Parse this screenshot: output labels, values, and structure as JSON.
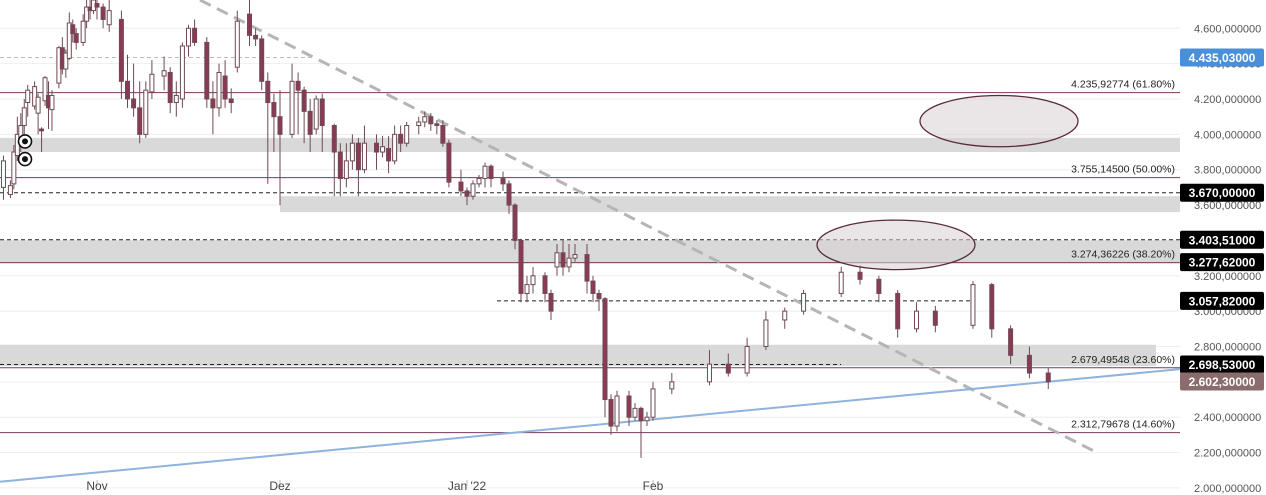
{
  "chart_data": {
    "type": "candlestick",
    "y_axis": {
      "range": [
        1960,
        4760
      ],
      "tick_values": [
        2000,
        2200,
        2400,
        2600,
        2800,
        3000,
        3200,
        3400,
        3600,
        3800,
        4000,
        4200,
        4400,
        4600
      ],
      "tick_labels": [
        "2.000,000000",
        "2.200,000000",
        "2.400,000000",
        "2.600,000000",
        "2.800,000000",
        "3.000,000000",
        "3.200,000000",
        "3.400,000000",
        "3.600,000000",
        "3.800,000000",
        "4.000,000000",
        "4.200,000000",
        "4.400,000000",
        "4.600,000000"
      ]
    },
    "x_axis": {
      "labels": [
        {
          "text": "Nov",
          "date": "2021-11-01"
        },
        {
          "text": "Dez",
          "date": "2021-12-01"
        },
        {
          "text": "Jan '22",
          "date": "2022-01-01"
        },
        {
          "text": "Feb",
          "date": "2022-02-01"
        }
      ]
    },
    "price_labels": [
      {
        "text": "4.435,03000",
        "value": 4435.03,
        "color": "#4a90d9"
      },
      {
        "text": "3.670,00000",
        "value": 3670,
        "color": "#000000"
      },
      {
        "text": "3.403,51000",
        "value": 3403.51,
        "color": "#000000"
      },
      {
        "text": "3.277,62000",
        "value": 3277.62,
        "color": "#000000"
      },
      {
        "text": "3.057,82000",
        "value": 3057.82,
        "color": "#000000"
      },
      {
        "text": "2.698,53000",
        "value": 2698.53,
        "color": "#000000"
      },
      {
        "text": "2.602,30000",
        "value": 2602.3,
        "color": "#8a6c6c"
      }
    ],
    "fib_levels": [
      {
        "text": "4.235,92774 (61.80%)",
        "value": 4235.92774
      },
      {
        "text": "3.755,14500 (50.00%)",
        "value": 3755.145
      },
      {
        "text": "3.274,36226 (38.20%)",
        "value": 3274.36226
      },
      {
        "text": "2.679,49548 (23.60%)",
        "value": 2679.49548
      },
      {
        "text": "2.312,79678 (14.60%)",
        "value": 2312.79678
      }
    ],
    "zones": [
      {
        "from": 3900,
        "to": 3980,
        "start": "2021-10-05",
        "end": "2022-03-01"
      },
      {
        "from": 3560,
        "to": 3650,
        "start": "2021-12-01",
        "end": "2022-03-01"
      },
      {
        "from": 3270,
        "to": 3400,
        "start": "2021-10-05",
        "end": "2022-03-01"
      },
      {
        "from": 2690,
        "to": 2810,
        "start": "2021-10-05",
        "end": "2022-02-27"
      }
    ],
    "dashed_levels": [
      {
        "value": 4435.03,
        "start": "2021-10-05",
        "end": "2021-12-06"
      },
      {
        "value": 3670,
        "start": "2021-10-05",
        "end": "2022-03-01"
      },
      {
        "value": 3403.51,
        "start": "2021-10-05",
        "end": "2022-03-01"
      },
      {
        "value": 3057.82,
        "start": "2022-01-06",
        "end": "2022-02-22"
      },
      {
        "value": 2698.53,
        "start": "2021-10-05",
        "end": "2022-02-11"
      }
    ],
    "trendlines": [
      {
        "style": "dashed-gray",
        "points": [
          [
            "2021-11-06",
            4800
          ],
          [
            "2022-02-28",
            2200
          ]
        ]
      },
      {
        "style": "solid-blue",
        "points": [
          [
            "2021-10-05",
            2030
          ],
          [
            "2022-03-01",
            2670
          ]
        ]
      }
    ],
    "ellipses": [
      {
        "center_date": "2022-02-24",
        "center_value": 4075,
        "date_radius": 5,
        "value_radius": 145
      },
      {
        "center_date": "2022-02-22",
        "center_value": 3375,
        "date_radius": 5,
        "value_radius": 140
      }
    ],
    "markers": [
      {
        "icon": "eye-marker-icon",
        "date": "2021-10-06",
        "value": 3960
      },
      {
        "icon": "eye-marker-icon",
        "date": "2021-10-06",
        "value": 3860
      }
    ],
    "candles": [
      [
        "2021-10-05",
        3700,
        3850,
        3630,
        3880
      ],
      [
        "2021-10-07",
        3660,
        3710,
        3640,
        3740
      ],
      [
        "2021-10-08",
        3720,
        3900,
        3690,
        3940
      ],
      [
        "2021-10-09",
        3880,
        4000,
        3850,
        4100
      ],
      [
        "2021-10-10",
        3950,
        4050,
        3900,
        4120
      ],
      [
        "2021-10-11",
        4050,
        4150,
        4000,
        4200
      ],
      [
        "2021-10-12",
        4180,
        4250,
        4100,
        4280
      ],
      [
        "2021-10-14",
        4160,
        4270,
        4140,
        4300
      ],
      [
        "2021-10-15",
        4120,
        4210,
        4000,
        4230
      ],
      [
        "2021-10-16",
        4030,
        4020,
        3900,
        4040
      ],
      [
        "2021-10-17",
        4190,
        4320,
        4160,
        4330
      ],
      [
        "2021-10-18",
        4220,
        4150,
        4030,
        4300
      ],
      [
        "2021-10-19",
        4140,
        4220,
        4020,
        4250
      ],
      [
        "2021-10-21",
        4290,
        4490,
        4260,
        4500
      ],
      [
        "2021-10-22",
        4490,
        4370,
        4340,
        4550
      ],
      [
        "2021-10-23",
        4370,
        4460,
        4320,
        4480
      ],
      [
        "2021-10-24",
        4430,
        4630,
        4420,
        4690
      ],
      [
        "2021-10-25",
        4620,
        4570,
        4520,
        4650
      ],
      [
        "2021-10-26",
        4570,
        4520,
        4480,
        4600
      ],
      [
        "2021-10-28",
        4520,
        4640,
        4500,
        4680
      ],
      [
        "2021-10-29",
        4640,
        4720,
        4600,
        4760
      ],
      [
        "2021-10-30",
        4720,
        4700,
        4650,
        4760
      ],
      [
        "2021-10-31",
        4700,
        4760,
        4680,
        4760
      ],
      [
        "2021-11-01",
        4740,
        4720,
        4650,
        4760
      ],
      [
        "2021-11-02",
        4720,
        4650,
        4600,
        4740
      ],
      [
        "2021-11-03",
        4620,
        4700,
        4580,
        4760
      ],
      [
        "2021-11-05",
        4650,
        4300,
        4200,
        4700
      ],
      [
        "2021-11-06",
        4300,
        4200,
        4150,
        4450
      ],
      [
        "2021-11-07",
        4200,
        4150,
        4100,
        4400
      ],
      [
        "2021-11-08",
        4150,
        4000,
        3950,
        4300
      ],
      [
        "2021-11-09",
        4000,
        4250,
        3980,
        4300
      ],
      [
        "2021-11-10",
        4240,
        4340,
        4200,
        4420
      ],
      [
        "2021-11-12",
        4330,
        4360,
        4250,
        4440
      ],
      [
        "2021-11-13",
        4350,
        4180,
        4120,
        4380
      ],
      [
        "2021-11-14",
        4180,
        4220,
        4100,
        4300
      ],
      [
        "2021-11-15",
        4200,
        4500,
        4150,
        4520
      ],
      [
        "2021-11-16",
        4500,
        4600,
        4440,
        4620
      ],
      [
        "2021-11-17",
        4600,
        4520,
        4500,
        4650
      ],
      [
        "2021-11-19",
        4520,
        4200,
        4150,
        4550
      ],
      [
        "2021-11-20",
        4200,
        4150,
        4000,
        4300
      ],
      [
        "2021-11-21",
        4150,
        4350,
        4100,
        4400
      ],
      [
        "2021-11-22",
        4330,
        4200,
        4150,
        4420
      ],
      [
        "2021-11-23",
        4200,
        4180,
        4120,
        4260
      ],
      [
        "2021-11-24",
        4380,
        4640,
        4350,
        4700
      ],
      [
        "2021-11-26",
        4680,
        4560,
        4500,
        4760
      ],
      [
        "2021-11-27",
        4560,
        4540,
        4500,
        4600
      ],
      [
        "2021-11-28",
        4540,
        4300,
        4250,
        4560
      ],
      [
        "2021-11-29",
        4300,
        4180,
        3720,
        4350
      ],
      [
        "2021-11-30",
        4180,
        4100,
        3900,
        4230
      ],
      [
        "2021-12-01",
        4100,
        4000,
        3600,
        4250
      ],
      [
        "2021-12-03",
        4000,
        4300,
        3980,
        4400
      ],
      [
        "2021-12-04",
        4300,
        4250,
        4000,
        4350
      ],
      [
        "2021-12-05",
        4250,
        4130,
        3950,
        4270
      ],
      [
        "2021-12-06",
        4130,
        4000,
        3900,
        4200
      ],
      [
        "2021-12-07",
        4030,
        4200,
        4000,
        4220
      ],
      [
        "2021-12-08",
        4200,
        4050,
        3900,
        4230
      ],
      [
        "2021-12-10",
        4050,
        3900,
        3650,
        4060
      ],
      [
        "2021-12-11",
        3900,
        3750,
        3650,
        3950
      ],
      [
        "2021-12-12",
        3750,
        3850,
        3700,
        3950
      ],
      [
        "2021-12-13",
        3850,
        3950,
        3800,
        4000
      ],
      [
        "2021-12-14",
        3950,
        3800,
        3650,
        3980
      ],
      [
        "2021-12-15",
        3800,
        3950,
        3780,
        4050
      ],
      [
        "2021-12-17",
        3950,
        3900,
        3800,
        4000
      ],
      [
        "2021-12-18",
        3900,
        3930,
        3870,
        3990
      ],
      [
        "2021-12-19",
        3920,
        3850,
        3780,
        3990
      ],
      [
        "2021-12-20",
        3850,
        4000,
        3830,
        4050
      ],
      [
        "2021-12-21",
        4000,
        3950,
        3900,
        4050
      ],
      [
        "2021-12-22",
        3950,
        4050,
        3930,
        4070
      ],
      [
        "2021-12-24",
        4050,
        4070,
        4000,
        4100
      ],
      [
        "2021-12-25",
        4070,
        4100,
        4040,
        4130
      ],
      [
        "2021-12-26",
        4100,
        4060,
        4020,
        4120
      ],
      [
        "2021-12-27",
        4060,
        4050,
        4000,
        4080
      ],
      [
        "2021-12-28",
        4050,
        3950,
        3930,
        4080
      ],
      [
        "2021-12-29",
        3950,
        3730,
        3700,
        3970
      ],
      [
        "2021-12-31",
        3730,
        3680,
        3650,
        3800
      ],
      [
        "2022-01-01",
        3680,
        3650,
        3600,
        3700
      ],
      [
        "2022-01-02",
        3650,
        3720,
        3630,
        3740
      ],
      [
        "2022-01-03",
        3720,
        3750,
        3700,
        3770
      ],
      [
        "2022-01-04",
        3750,
        3820,
        3700,
        3840
      ],
      [
        "2022-01-05",
        3820,
        3750,
        3700,
        3830
      ],
      [
        "2022-01-07",
        3750,
        3720,
        3680,
        3790
      ],
      [
        "2022-01-08",
        3720,
        3600,
        3550,
        3740
      ],
      [
        "2022-01-09",
        3600,
        3400,
        3350,
        3610
      ],
      [
        "2022-01-10",
        3400,
        3100,
        3050,
        3410
      ],
      [
        "2022-01-11",
        3100,
        3150,
        3050,
        3200
      ],
      [
        "2022-01-12",
        3150,
        3200,
        3100,
        3250
      ],
      [
        "2022-01-14",
        3200,
        3100,
        3050,
        3220
      ],
      [
        "2022-01-15",
        3100,
        3000,
        2950,
        3120
      ],
      [
        "2022-01-16",
        3250,
        3330,
        3200,
        3380
      ],
      [
        "2022-01-17",
        3330,
        3250,
        3200,
        3400
      ],
      [
        "2022-01-18",
        3250,
        3300,
        3220,
        3380
      ],
      [
        "2022-01-19",
        3300,
        3320,
        3280,
        3380
      ],
      [
        "2022-01-21",
        3320,
        3170,
        3100,
        3380
      ],
      [
        "2022-01-22",
        3170,
        3100,
        3050,
        3200
      ],
      [
        "2022-01-23",
        3100,
        3070,
        3000,
        3120
      ],
      [
        "2022-01-24",
        3070,
        2500,
        2400,
        3080
      ],
      [
        "2022-01-25",
        2500,
        2350,
        2300,
        2530
      ],
      [
        "2022-01-26",
        2350,
        2520,
        2320,
        2550
      ],
      [
        "2022-01-28",
        2520,
        2400,
        2350,
        2550
      ],
      [
        "2022-01-29",
        2400,
        2450,
        2380,
        2480
      ],
      [
        "2022-01-30",
        2450,
        2380,
        2170,
        2460
      ],
      [
        "2022-01-31",
        2380,
        2400,
        2350,
        2430
      ],
      [
        "2022-02-01",
        2400,
        2560,
        2380,
        2600
      ],
      [
        "2022-02-02",
        2560,
        2600,
        2530,
        2650
      ],
      [
        "2022-02-04",
        2600,
        2700,
        2580,
        2780
      ],
      [
        "2022-02-05",
        2700,
        2650,
        2630,
        2760
      ],
      [
        "2022-02-06",
        2650,
        2800,
        2630,
        2850
      ],
      [
        "2022-02-07",
        2800,
        2950,
        2780,
        3000
      ],
      [
        "2022-02-08",
        2950,
        3000,
        2900,
        3020
      ],
      [
        "2022-02-09",
        3000,
        3100,
        2980,
        3120
      ],
      [
        "2022-02-11",
        3100,
        3220,
        3080,
        3250
      ],
      [
        "2022-02-12",
        3220,
        3180,
        3150,
        3260
      ],
      [
        "2022-02-13",
        3180,
        3100,
        3050,
        3200
      ],
      [
        "2022-02-14",
        3100,
        2900,
        2850,
        3120
      ],
      [
        "2022-02-15",
        2900,
        3000,
        2880,
        3050
      ],
      [
        "2022-02-16",
        3000,
        2920,
        2880,
        3030
      ],
      [
        "2022-02-18",
        2920,
        3150,
        2900,
        3170
      ],
      [
        "2022-02-19",
        3150,
        2900,
        2850,
        3160
      ],
      [
        "2022-02-20",
        2900,
        2750,
        2700,
        2920
      ],
      [
        "2022-02-21",
        2750,
        2650,
        2620,
        2800
      ],
      [
        "2022-02-22",
        2650,
        2600,
        2560,
        2680
      ]
    ]
  }
}
